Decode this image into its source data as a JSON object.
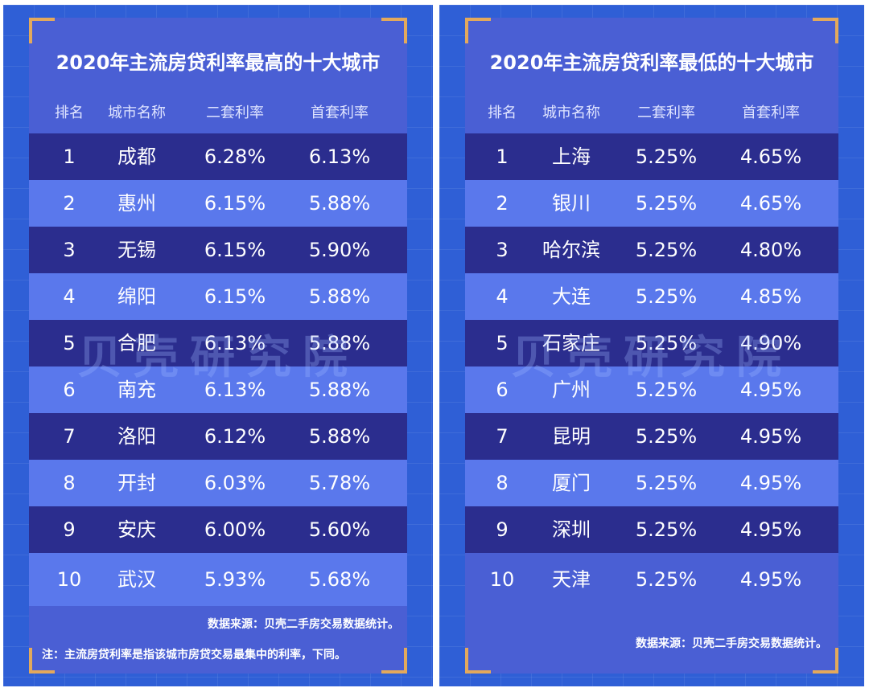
{
  "colors": {
    "background": "#2f5fd6",
    "card": "#4a5fd4",
    "row_dark": "#2b2d8e",
    "row_light": "#5a78ec",
    "corner_accent": "#e3a95c"
  },
  "left_panel": {
    "title": "2020年主流房贷利率最高的十大城市",
    "headers": [
      "排名",
      "城市名称",
      "二套利率",
      "首套利率"
    ],
    "rows": [
      {
        "rank": "1",
        "city": "成都",
        "second": "6.28%",
        "first": "6.13%"
      },
      {
        "rank": "2",
        "city": "惠州",
        "second": "6.15%",
        "first": "5.88%"
      },
      {
        "rank": "3",
        "city": "无锡",
        "second": "6.15%",
        "first": "5.90%"
      },
      {
        "rank": "4",
        "city": "绵阳",
        "second": "6.15%",
        "first": "5.88%"
      },
      {
        "rank": "5",
        "city": "合肥",
        "second": "6.13%",
        "first": "5.88%"
      },
      {
        "rank": "6",
        "city": "南充",
        "second": "6.13%",
        "first": "5.88%"
      },
      {
        "rank": "7",
        "city": "洛阳",
        "second": "6.12%",
        "first": "5.88%"
      },
      {
        "rank": "8",
        "city": "开封",
        "second": "6.03%",
        "first": "5.78%"
      },
      {
        "rank": "9",
        "city": "安庆",
        "second": "6.00%",
        "first": "5.60%"
      },
      {
        "rank": "10",
        "city": "武汉",
        "second": "5.93%",
        "first": "5.68%"
      }
    ],
    "watermark": "贝壳研究院",
    "source": "数据来源：贝壳二手房交易数据统计。",
    "note": "注：主流房贷利率是指该城市房贷交易最集中的利率，下同。"
  },
  "right_panel": {
    "title": "2020年主流房贷利率最低的十大城市",
    "headers": [
      "排名",
      "城市名称",
      "二套利率",
      "首套利率"
    ],
    "rows": [
      {
        "rank": "1",
        "city": "上海",
        "second": "5.25%",
        "first": "4.65%"
      },
      {
        "rank": "2",
        "city": "银川",
        "second": "5.25%",
        "first": "4.65%"
      },
      {
        "rank": "3",
        "city": "哈尔滨",
        "second": "5.25%",
        "first": "4.80%"
      },
      {
        "rank": "4",
        "city": "大连",
        "second": "5.25%",
        "first": "4.85%"
      },
      {
        "rank": "5",
        "city": "石家庄",
        "second": "5.25%",
        "first": "4.90%"
      },
      {
        "rank": "6",
        "city": "广州",
        "second": "5.25%",
        "first": "4.95%"
      },
      {
        "rank": "7",
        "city": "昆明",
        "second": "5.25%",
        "first": "4.95%"
      },
      {
        "rank": "8",
        "city": "厦门",
        "second": "5.25%",
        "first": "4.95%"
      },
      {
        "rank": "9",
        "city": "深圳",
        "second": "5.25%",
        "first": "4.95%"
      },
      {
        "rank": "10",
        "city": "天津",
        "second": "5.25%",
        "first": "4.95%"
      }
    ],
    "watermark": "贝壳研究院",
    "source": "数据来源：贝壳二手房交易数据统计。"
  }
}
